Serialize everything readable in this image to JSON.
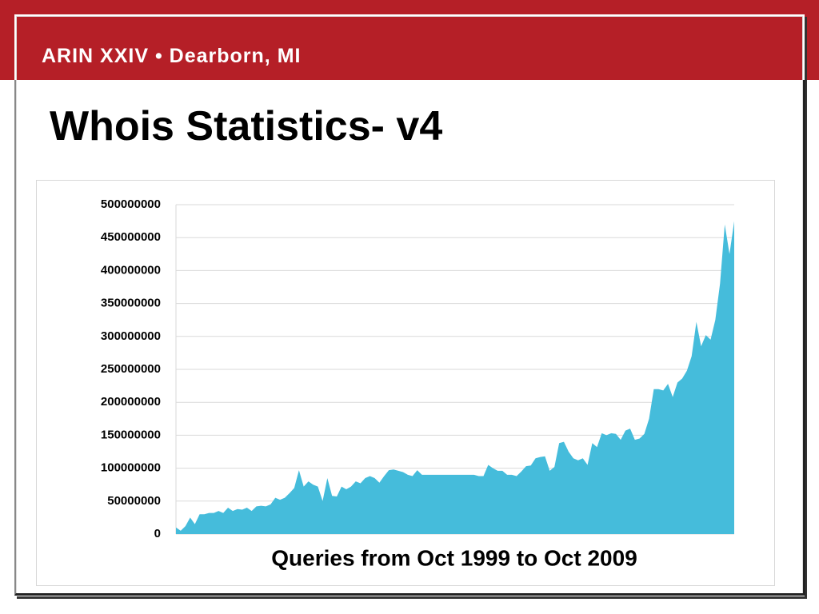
{
  "header": "ARIN XXIV • Dearborn, MI",
  "chart_data": {
    "type": "area",
    "title": "Whois Statistics- v4",
    "xlabel": "Queries from Oct 1999 to Oct 2009",
    "series": [
      {
        "color": "#45bcdb",
        "values": [
          10000000,
          5000000,
          12000000,
          25000000,
          15000000,
          30000000,
          30000000,
          32000000,
          32000000,
          35000000,
          32000000,
          40000000,
          35000000,
          38000000,
          37000000,
          40000000,
          35000000,
          42000000,
          43000000,
          42000000,
          45000000,
          55000000,
          52000000,
          55000000,
          62000000,
          70000000,
          97000000,
          72000000,
          80000000,
          75000000,
          72000000,
          50000000,
          85000000,
          58000000,
          57000000,
          72000000,
          68000000,
          72000000,
          80000000,
          77000000,
          85000000,
          88000000,
          85000000,
          78000000,
          88000000,
          97000000,
          98000000,
          96000000,
          94000000,
          90000000,
          88000000,
          97000000,
          90000000,
          90000000,
          90000000,
          90000000,
          90000000,
          90000000,
          90000000,
          90000000,
          90000000,
          90000000,
          90000000,
          90000000,
          88000000,
          88000000,
          105000000,
          100000000,
          96000000,
          96000000,
          90000000,
          90000000,
          88000000,
          95000000,
          103000000,
          104000000,
          115000000,
          117000000,
          118000000,
          96000000,
          102000000,
          138000000,
          140000000,
          125000000,
          115000000,
          112000000,
          115000000,
          105000000,
          138000000,
          132000000,
          153000000,
          150000000,
          153000000,
          152000000,
          143000000,
          157000000,
          160000000,
          143000000,
          145000000,
          152000000,
          175000000,
          220000000,
          220000000,
          218000000,
          228000000,
          208000000,
          230000000,
          236000000,
          248000000,
          270000000,
          322000000,
          285000000,
          302000000,
          295000000,
          325000000,
          380000000,
          470000000,
          425000000,
          475000000
        ]
      }
    ],
    "ylim": [
      0,
      500000000
    ],
    "yticks": [
      0,
      50000000,
      100000000,
      150000000,
      200000000,
      250000000,
      300000000,
      350000000,
      400000000,
      450000000,
      500000000
    ],
    "grid": true
  }
}
